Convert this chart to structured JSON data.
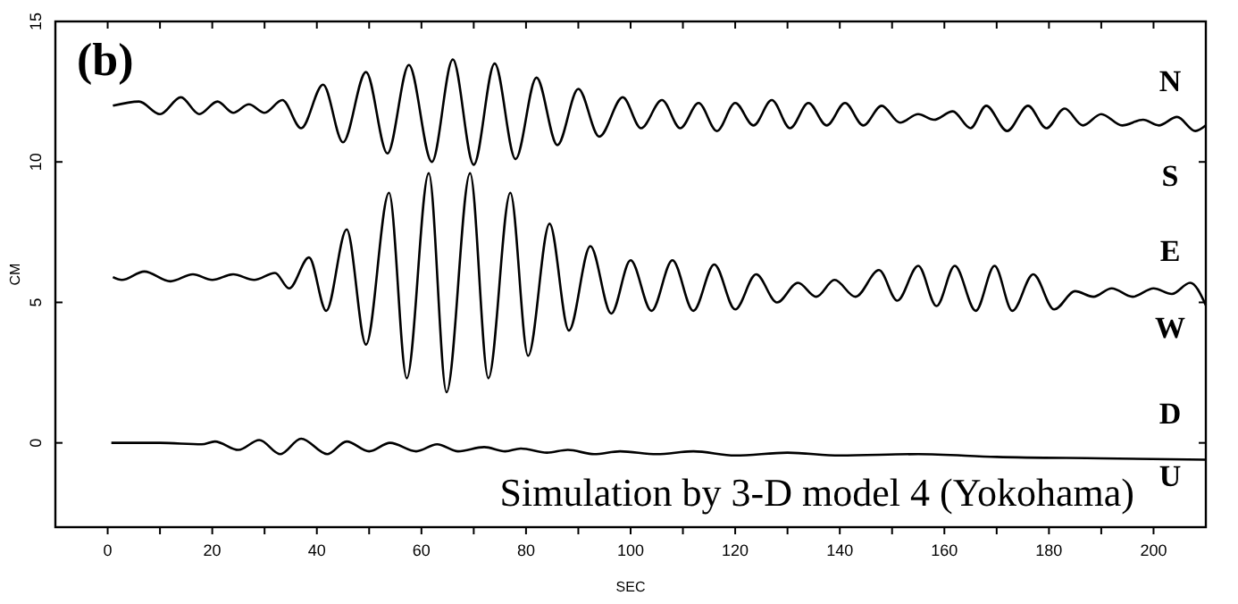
{
  "chart_data": {
    "type": "line",
    "xlabel": "SEC",
    "ylabel": "CM",
    "xlim": [
      -10,
      210
    ],
    "ylim": [
      -3,
      15
    ],
    "xticks": [
      0,
      {
        "value": 10,
        "label": null
      },
      20,
      {
        "value": 30,
        "label": null
      },
      40,
      {
        "value": 50,
        "label": null
      },
      60,
      {
        "value": 70,
        "label": null
      },
      80,
      {
        "value": 90,
        "label": null
      },
      100,
      {
        "value": 110,
        "label": null
      },
      120,
      {
        "value": 130,
        "label": null
      },
      140,
      {
        "value": 150,
        "label": null
      },
      160,
      {
        "value": 170,
        "label": null
      },
      180,
      {
        "value": 190,
        "label": null
      },
      200
    ],
    "yticks": [
      0,
      5,
      10,
      15
    ],
    "grid": false,
    "marker": "none",
    "line_style": "solid",
    "series": [
      {
        "color": "#000000",
        "x": [
          1,
          6,
          10,
          14,
          17.5,
          21,
          24,
          27,
          30,
          33.4,
          37,
          41.2,
          45,
          49.4,
          53.5,
          57.6,
          62,
          66,
          70,
          74,
          78,
          82,
          86,
          90,
          94,
          98.5,
          102,
          106,
          109.5,
          113,
          116.5,
          120,
          123.5,
          127,
          130.5,
          134,
          137.5,
          141,
          144.5,
          148,
          151.5,
          155,
          158,
          161.6,
          165,
          168,
          172,
          176,
          179.5,
          183,
          186.5,
          190,
          194,
          198,
          201,
          204.5,
          208,
          210
        ],
        "values": [
          12.0,
          12.15,
          11.7,
          12.3,
          11.7,
          12.15,
          11.75,
          12.05,
          11.75,
          12.2,
          11.2,
          12.75,
          10.7,
          13.2,
          10.3,
          13.45,
          10.0,
          13.65,
          9.9,
          13.5,
          10.1,
          13.0,
          10.6,
          12.6,
          10.9,
          12.3,
          11.2,
          12.2,
          11.2,
          12.1,
          11.1,
          12.1,
          11.3,
          12.2,
          11.2,
          12.1,
          11.3,
          12.1,
          11.3,
          12.0,
          11.4,
          11.7,
          11.5,
          11.8,
          11.2,
          12.0,
          11.1,
          12.0,
          11.2,
          11.9,
          11.3,
          11.7,
          11.3,
          11.5,
          11.3,
          11.6,
          11.1,
          11.3
        ]
      },
      {
        "color": "#000000",
        "x": [
          1,
          2.7,
          7,
          12,
          16.3,
          20,
          24,
          28,
          32,
          34.7,
          38.5,
          41.8,
          45.7,
          49.4,
          53.8,
          57.2,
          61.4,
          64.8,
          69.3,
          72.8,
          77,
          80.4,
          84.5,
          88.2,
          92.3,
          96.3,
          100,
          104,
          108,
          112,
          116,
          120,
          124,
          128,
          132,
          135.5,
          139,
          143,
          147.5,
          151,
          155,
          158.5,
          162,
          166,
          169.6,
          173,
          177,
          181,
          185,
          188.5,
          192,
          196,
          200,
          203.5,
          207,
          210
        ],
        "values": [
          5.9,
          5.8,
          6.1,
          5.75,
          6.0,
          5.8,
          6.0,
          5.8,
          6.05,
          5.5,
          6.6,
          4.7,
          7.6,
          3.5,
          8.9,
          2.3,
          9.6,
          1.8,
          9.6,
          2.3,
          8.9,
          3.1,
          7.8,
          4.0,
          7.0,
          4.6,
          6.5,
          4.7,
          6.5,
          4.7,
          6.35,
          4.75,
          6.0,
          5.0,
          5.7,
          5.2,
          5.8,
          5.2,
          6.15,
          5.06,
          6.3,
          4.87,
          6.3,
          4.7,
          6.3,
          4.7,
          6.0,
          4.75,
          5.4,
          5.2,
          5.5,
          5.2,
          5.5,
          5.3,
          5.7,
          4.9
        ]
      },
      {
        "color": "#000000",
        "x": [
          0.7,
          10,
          18,
          20.5,
          25,
          29,
          33,
          37,
          42,
          45.7,
          50,
          54,
          59,
          63,
          67,
          72,
          76,
          79,
          84,
          88,
          93,
          98,
          105,
          112,
          120,
          130,
          140,
          155,
          170,
          190,
          210
        ],
        "values": [
          0,
          0,
          -0.05,
          0.05,
          -0.25,
          0.1,
          -0.4,
          0.15,
          -0.4,
          0.05,
          -0.3,
          0.0,
          -0.3,
          -0.05,
          -0.3,
          -0.15,
          -0.3,
          -0.2,
          -0.35,
          -0.25,
          -0.4,
          -0.3,
          -0.4,
          -0.3,
          -0.45,
          -0.35,
          -0.45,
          -0.4,
          -0.5,
          -0.55,
          -0.6
        ]
      }
    ],
    "annotations": [
      "(b)",
      "Simulation by 3-D model 4 (Yokohama)",
      "N",
      "S",
      "E",
      "W",
      "D",
      "U"
    ]
  }
}
